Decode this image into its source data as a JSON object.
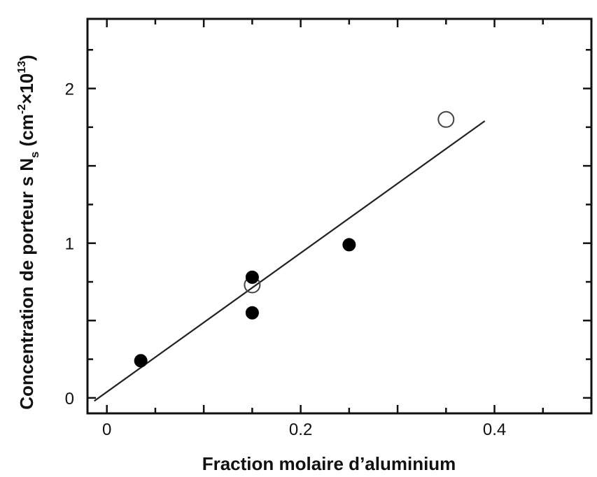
{
  "chart_data": {
    "type": "scatter",
    "title": "",
    "xlabel": "Fraction molaire d’aluminium",
    "ylabel": {
      "main": "Concentration de porteur s N",
      "subscript": "s",
      "unit_open": " (cm",
      "unit_exp": "-2",
      "unit_mid": "×10",
      "unit_exp2": "13",
      "unit_close": ")"
    },
    "xlim": [
      -0.02,
      0.5
    ],
    "ylim": [
      -0.1,
      2.45
    ],
    "x_ticks": [
      {
        "value": 0,
        "label": "0"
      },
      {
        "value": 0.2,
        "label": "0.2"
      },
      {
        "value": 0.4,
        "label": "0.4"
      }
    ],
    "y_ticks": [
      {
        "value": 0,
        "label": "0"
      },
      {
        "value": 1,
        "label": "1"
      },
      {
        "value": 2,
        "label": "2"
      }
    ],
    "grid": false,
    "series": [
      {
        "marker": "filled-circle",
        "points": [
          {
            "x": 0.035,
            "y": 0.24
          },
          {
            "x": 0.15,
            "y": 0.78
          },
          {
            "x": 0.15,
            "y": 0.55
          },
          {
            "x": 0.25,
            "y": 0.99
          }
        ]
      },
      {
        "marker": "open-circle",
        "points": [
          {
            "x": 0.15,
            "y": 0.73
          },
          {
            "x": 0.35,
            "y": 1.8
          }
        ]
      }
    ],
    "fit_line": {
      "x": [
        -0.013,
        0.39
      ],
      "y": [
        -0.02,
        1.79
      ]
    }
  }
}
